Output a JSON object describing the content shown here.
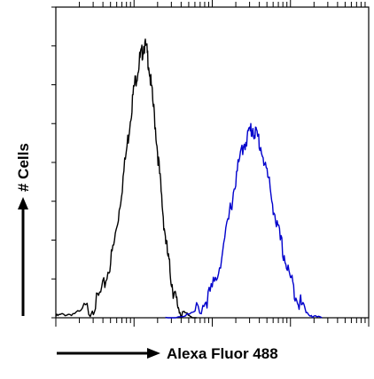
{
  "chart_data": {
    "type": "line",
    "title": "",
    "xlabel": "Alexa Fluor 488",
    "ylabel": "# Cells",
    "x_scale": "log",
    "xlim": [
      0,
      1
    ],
    "ylim": [
      0,
      1
    ],
    "grid": false,
    "legend": "none",
    "x_decades": 4,
    "x_minor_ticks_per_decade": 8,
    "y_major_ticks": 8,
    "y_minor_ticks": 0,
    "series": [
      {
        "color": "#000000",
        "values": [
          [
            0.0,
            0.005
          ],
          [
            0.02,
            0.01
          ],
          [
            0.05,
            0.012
          ],
          [
            0.08,
            0.02
          ],
          [
            0.11,
            0.03
          ],
          [
            0.13,
            0.05
          ],
          [
            0.15,
            0.09
          ],
          [
            0.17,
            0.16
          ],
          [
            0.185,
            0.23
          ],
          [
            0.2,
            0.33
          ],
          [
            0.215,
            0.45
          ],
          [
            0.23,
            0.57
          ],
          [
            0.24,
            0.66
          ],
          [
            0.25,
            0.74
          ],
          [
            0.26,
            0.79
          ],
          [
            0.268,
            0.83
          ],
          [
            0.275,
            0.85
          ],
          [
            0.282,
            0.88
          ],
          [
            0.29,
            0.86
          ],
          [
            0.297,
            0.82
          ],
          [
            0.305,
            0.74
          ],
          [
            0.315,
            0.65
          ],
          [
            0.325,
            0.54
          ],
          [
            0.335,
            0.42
          ],
          [
            0.345,
            0.31
          ],
          [
            0.355,
            0.22
          ],
          [
            0.365,
            0.15
          ],
          [
            0.375,
            0.09
          ],
          [
            0.385,
            0.05
          ],
          [
            0.395,
            0.03
          ],
          [
            0.41,
            0.015
          ],
          [
            0.43,
            0.005
          ],
          [
            0.45,
            0.0
          ]
        ]
      },
      {
        "color": "#0000cc",
        "values": [
          [
            0.35,
            0.0
          ],
          [
            0.4,
            0.005
          ],
          [
            0.44,
            0.015
          ],
          [
            0.47,
            0.04
          ],
          [
            0.49,
            0.07
          ],
          [
            0.51,
            0.12
          ],
          [
            0.53,
            0.2
          ],
          [
            0.55,
            0.3
          ],
          [
            0.565,
            0.39
          ],
          [
            0.58,
            0.47
          ],
          [
            0.595,
            0.54
          ],
          [
            0.61,
            0.58
          ],
          [
            0.62,
            0.6
          ],
          [
            0.63,
            0.61
          ],
          [
            0.64,
            0.59
          ],
          [
            0.65,
            0.57
          ],
          [
            0.665,
            0.51
          ],
          [
            0.68,
            0.44
          ],
          [
            0.695,
            0.36
          ],
          [
            0.71,
            0.28
          ],
          [
            0.725,
            0.22
          ],
          [
            0.74,
            0.16
          ],
          [
            0.755,
            0.11
          ],
          [
            0.77,
            0.07
          ],
          [
            0.785,
            0.04
          ],
          [
            0.8,
            0.02
          ],
          [
            0.82,
            0.005
          ],
          [
            0.85,
            0.0
          ]
        ]
      }
    ]
  }
}
